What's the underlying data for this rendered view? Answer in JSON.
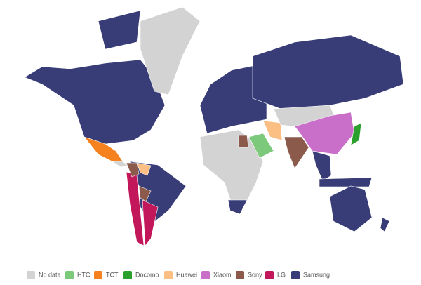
{
  "legend": [
    {
      "label": "No data",
      "color": "#d3d3d3"
    },
    {
      "label": "HTC",
      "color": "#7cc97c"
    },
    {
      "label": "TCT",
      "color": "#f5821f"
    },
    {
      "label": "Docomo",
      "color": "#2ca02c"
    },
    {
      "label": "Huawei",
      "color": "#fbbf84"
    },
    {
      "label": "Xiaomi",
      "color": "#c96fc9"
    },
    {
      "label": "Sony",
      "color": "#8c5a4b"
    },
    {
      "label": "LG",
      "color": "#c2185b"
    },
    {
      "label": "Samsung",
      "color": "#383d78"
    }
  ]
}
